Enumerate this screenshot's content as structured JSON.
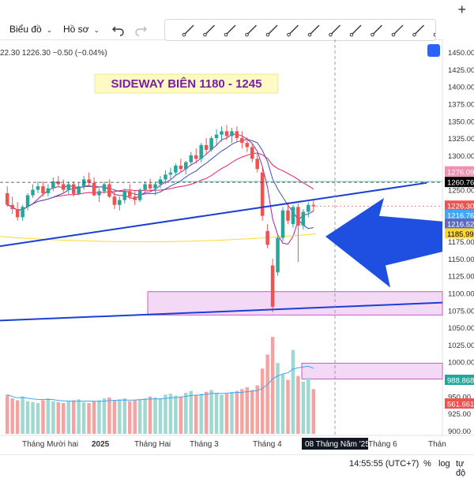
{
  "toolbar": {
    "chart_type_label": "Biểu đồ",
    "profile_label": "Hồ sơ"
  },
  "drawing_tools": [
    "trend-line-icon",
    "ray-icon",
    "path-icon",
    "horizontal-line-icon",
    "brush-icon",
    "rectangle-icon",
    "pattern-icon",
    "text-icon",
    "arrow-icon",
    "parallel-channel-icon",
    "measure-icon",
    "eye-icon",
    "share-icon"
  ],
  "header": {
    "ohlc_text": "22.30   1226.30   −0.50 (−0.04%)"
  },
  "annotation": {
    "title": "SIDEWAY BIÊN 1180 - 1245",
    "title_color": "#7b1fa2"
  },
  "price_axis": {
    "ticks": [
      "1450.00",
      "1425.00",
      "1400.00",
      "1375.00",
      "1350.00",
      "1325.00",
      "1300.00",
      "1275.00",
      "1250.00",
      "1225.00",
      "1200.00",
      "1175.00",
      "1150.00",
      "1125.00",
      "1100.00",
      "1075.00",
      "1050.00",
      "1025.00",
      "1000.00",
      "975.00",
      "950.00",
      "925.00",
      "900.00"
    ],
    "labels": [
      {
        "text": "1276.09",
        "bg": "#f48fb1"
      },
      {
        "text": "1260.76",
        "bg": "#000000"
      },
      {
        "text": "1226.30",
        "bg": "#ef5350"
      },
      {
        "text": "1216.76",
        "bg": "#42a5f5"
      },
      {
        "text": "1216.52",
        "bg": "#5c6bc0"
      },
      {
        "text": "1185.99",
        "bg": "#fdd835"
      },
      {
        "text": "988.868",
        "bg": "#26a69a"
      },
      {
        "text": "561.661",
        "bg": "#ef5350"
      }
    ]
  },
  "time_axis": {
    "labels": [
      "Tháng Mười hai",
      "2025",
      "Tháng Hai",
      "Tháng 3",
      "Tháng 4",
      "Tháng 6",
      "Thán"
    ],
    "cursor_label": "08 Tháng Năm '25"
  },
  "bottom": {
    "clock": "14:55:55 (UTC+7)",
    "percent": "%",
    "log": "log",
    "auto": "tự độ"
  },
  "colors": {
    "up": "#26a69a",
    "down": "#ef5350",
    "trendline": "#1a3fd6",
    "arrow": "#1f4fe0",
    "zone": "#f3d9f5",
    "zone_border": "#c45cc9"
  },
  "chart_data": {
    "type": "candlestick",
    "ylim": [
      900,
      1460
    ],
    "candles": [
      [
        1245,
        1255,
        1225,
        1228
      ],
      [
        1228,
        1240,
        1215,
        1222
      ],
      [
        1222,
        1232,
        1205,
        1210
      ],
      [
        1210,
        1228,
        1205,
        1225
      ],
      [
        1225,
        1245,
        1220,
        1242
      ],
      [
        1242,
        1258,
        1238,
        1250
      ],
      [
        1250,
        1262,
        1245,
        1255
      ],
      [
        1255,
        1262,
        1240,
        1245
      ],
      [
        1245,
        1258,
        1240,
        1252
      ],
      [
        1252,
        1268,
        1248,
        1262
      ],
      [
        1262,
        1270,
        1255,
        1258
      ],
      [
        1258,
        1265,
        1245,
        1250
      ],
      [
        1250,
        1262,
        1244,
        1258
      ],
      [
        1258,
        1262,
        1240,
        1244
      ],
      [
        1244,
        1260,
        1242,
        1255
      ],
      [
        1255,
        1270,
        1250,
        1265
      ],
      [
        1265,
        1275,
        1255,
        1260
      ],
      [
        1260,
        1268,
        1240,
        1242
      ],
      [
        1242,
        1252,
        1232,
        1248
      ],
      [
        1248,
        1262,
        1244,
        1258
      ],
      [
        1258,
        1265,
        1238,
        1240
      ],
      [
        1240,
        1250,
        1222,
        1228
      ],
      [
        1228,
        1240,
        1220,
        1235
      ],
      [
        1235,
        1252,
        1230,
        1248
      ],
      [
        1248,
        1258,
        1236,
        1240
      ],
      [
        1240,
        1248,
        1228,
        1235
      ],
      [
        1235,
        1252,
        1232,
        1250
      ],
      [
        1250,
        1262,
        1245,
        1258
      ],
      [
        1258,
        1266,
        1248,
        1252
      ],
      [
        1252,
        1262,
        1242,
        1258
      ],
      [
        1258,
        1270,
        1252,
        1265
      ],
      [
        1265,
        1278,
        1258,
        1272
      ],
      [
        1272,
        1282,
        1265,
        1275
      ],
      [
        1275,
        1288,
        1270,
        1285
      ],
      [
        1285,
        1295,
        1275,
        1280
      ],
      [
        1280,
        1292,
        1272,
        1290
      ],
      [
        1290,
        1305,
        1285,
        1300
      ],
      [
        1300,
        1310,
        1288,
        1295
      ],
      [
        1295,
        1318,
        1290,
        1315
      ],
      [
        1315,
        1325,
        1302,
        1308
      ],
      [
        1308,
        1328,
        1305,
        1325
      ],
      [
        1325,
        1338,
        1315,
        1330
      ],
      [
        1330,
        1342,
        1320,
        1335
      ],
      [
        1335,
        1344,
        1322,
        1328
      ],
      [
        1328,
        1340,
        1318,
        1335
      ],
      [
        1335,
        1342,
        1320,
        1325
      ],
      [
        1325,
        1335,
        1310,
        1318
      ],
      [
        1318,
        1326,
        1305,
        1312
      ],
      [
        1312,
        1318,
        1290,
        1295
      ],
      [
        1295,
        1302,
        1275,
        1280
      ],
      [
        1275,
        1282,
        1205,
        1212
      ],
      [
        1190,
        1200,
        1165,
        1170
      ],
      [
        1140,
        1150,
        1072,
        1080
      ],
      [
        1130,
        1185,
        1125,
        1180
      ],
      [
        1180,
        1225,
        1175,
        1220
      ],
      [
        1220,
        1232,
        1200,
        1205
      ],
      [
        1200,
        1228,
        1195,
        1225
      ],
      [
        1225,
        1230,
        1145,
        1198
      ],
      [
        1198,
        1222,
        1192,
        1218
      ],
      [
        1218,
        1232,
        1210,
        1228
      ],
      [
        1228,
        1235,
        1218,
        1226
      ]
    ],
    "volume_ylim": [
      0,
      1100
    ],
    "volumes": [
      420,
      380,
      360,
      400,
      350,
      340,
      330,
      360,
      380,
      350,
      340,
      330,
      350,
      360,
      370,
      340,
      330,
      350,
      360,
      380,
      390,
      360,
      370,
      380,
      350,
      360,
      370,
      380,
      400,
      390,
      380,
      420,
      430,
      410,
      400,
      440,
      460,
      420,
      430,
      450,
      470,
      440,
      420,
      430,
      450,
      460,
      480,
      500,
      470,
      520,
      700,
      850,
      1040,
      760,
      640,
      580,
      900,
      620,
      560,
      600,
      480
    ]
  }
}
